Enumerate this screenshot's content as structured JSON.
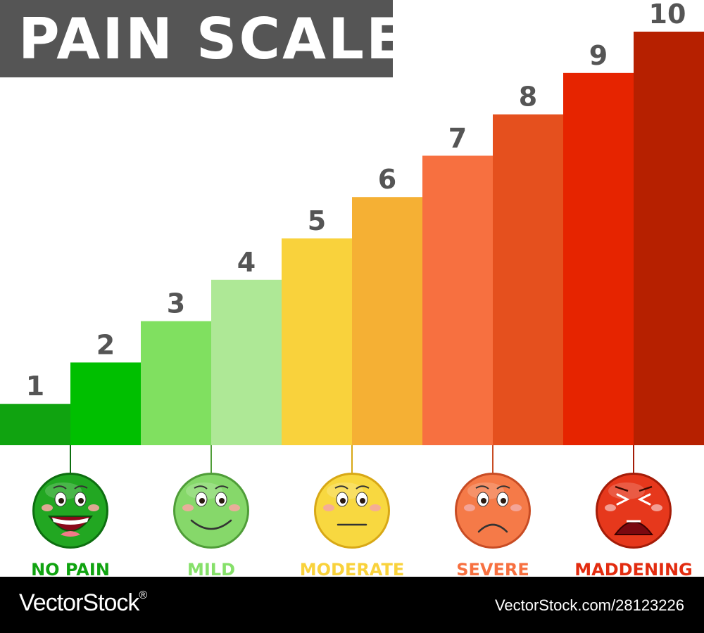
{
  "chart_data": {
    "type": "bar",
    "title": "PAIN SCALE",
    "categories": [
      "1",
      "2",
      "3",
      "4",
      "5",
      "6",
      "7",
      "8",
      "9",
      "10"
    ],
    "values": [
      1,
      2,
      3,
      4,
      5,
      6,
      7,
      8,
      9,
      10
    ],
    "ylim": [
      0,
      10
    ],
    "grid": false,
    "bar_colors": [
      "#10a310",
      "#00bf00",
      "#80e060",
      "#aee896",
      "#f9d23c",
      "#f5b034",
      "#f77040",
      "#e5501e",
      "#e62400",
      "#b62000"
    ]
  },
  "levels": [
    {
      "name": "NO PAIN",
      "color": "#10a310",
      "at": 1,
      "face_fill": "#22a722",
      "face_dark": "#0d6e10",
      "expression": "laugh"
    },
    {
      "name": "MILD",
      "color": "#86e06a",
      "at": 3,
      "face_fill": "#86d86a",
      "face_dark": "#4f9d38",
      "expression": "smile"
    },
    {
      "name": "MODERATE",
      "color": "#f9d23c",
      "at": 5,
      "face_fill": "#f8d840",
      "face_dark": "#d8a816",
      "expression": "neutral"
    },
    {
      "name": "SEVERE",
      "color": "#f77040",
      "at": 7,
      "face_fill": "#f57a48",
      "face_dark": "#c84c24",
      "expression": "frown"
    },
    {
      "name": "MADDENING",
      "color": "#e22c10",
      "at": 9,
      "face_fill": "#e6381c",
      "face_dark": "#a41c08",
      "expression": "cry"
    }
  ],
  "footer": {
    "brand": "VectorStock",
    "registered": "®",
    "id": "VectorStock.com/28123226"
  }
}
